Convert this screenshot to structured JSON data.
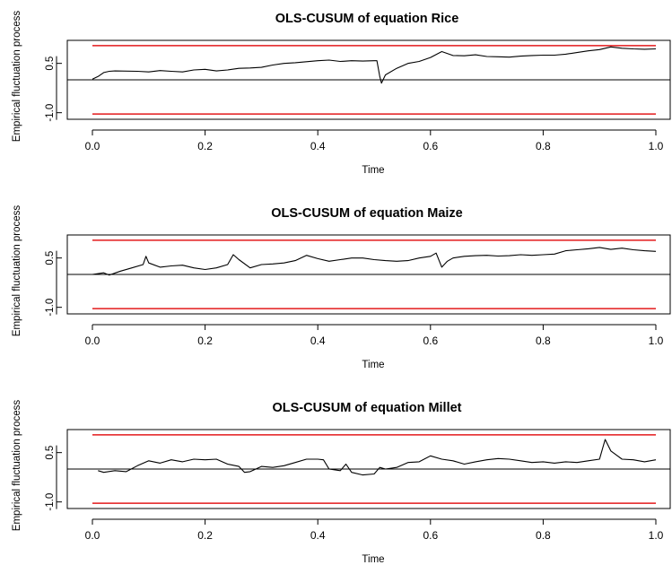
{
  "chart_data": [
    {
      "type": "line",
      "title": "OLS-CUSUM of equation Rice",
      "xlabel": "Time",
      "ylabel": "Empirical fluctuation process",
      "xlim": [
        0,
        1
      ],
      "ylim": [
        -1.2,
        1.2
      ],
      "xticks": [
        "0.0",
        "0.2",
        "0.4",
        "0.6",
        "0.8",
        "1.0"
      ],
      "yticks": [
        "-1.0",
        "0.5"
      ],
      "boundary": 1.04,
      "boundary_color": "#e31a1c",
      "series_color": "#000000",
      "zero_line": true,
      "points": [
        [
          0,
          0.02
        ],
        [
          0.01,
          0.1
        ],
        [
          0.02,
          0.22
        ],
        [
          0.03,
          0.26
        ],
        [
          0.04,
          0.27
        ],
        [
          0.08,
          0.26
        ],
        [
          0.1,
          0.24
        ],
        [
          0.12,
          0.28
        ],
        [
          0.14,
          0.26
        ],
        [
          0.16,
          0.24
        ],
        [
          0.18,
          0.3
        ],
        [
          0.2,
          0.32
        ],
        [
          0.22,
          0.27
        ],
        [
          0.24,
          0.3
        ],
        [
          0.26,
          0.35
        ],
        [
          0.28,
          0.36
        ],
        [
          0.3,
          0.38
        ],
        [
          0.32,
          0.45
        ],
        [
          0.34,
          0.5
        ],
        [
          0.36,
          0.52
        ],
        [
          0.38,
          0.55
        ],
        [
          0.4,
          0.58
        ],
        [
          0.42,
          0.6
        ],
        [
          0.44,
          0.56
        ],
        [
          0.46,
          0.58
        ],
        [
          0.48,
          0.57
        ],
        [
          0.5,
          0.58
        ],
        [
          0.505,
          0.58
        ],
        [
          0.51,
          0.1
        ],
        [
          0.513,
          -0.1
        ],
        [
          0.52,
          0.15
        ],
        [
          0.54,
          0.35
        ],
        [
          0.56,
          0.5
        ],
        [
          0.58,
          0.56
        ],
        [
          0.6,
          0.68
        ],
        [
          0.62,
          0.86
        ],
        [
          0.64,
          0.74
        ],
        [
          0.66,
          0.73
        ],
        [
          0.68,
          0.76
        ],
        [
          0.7,
          0.71
        ],
        [
          0.72,
          0.7
        ],
        [
          0.74,
          0.69
        ],
        [
          0.76,
          0.72
        ],
        [
          0.78,
          0.74
        ],
        [
          0.8,
          0.75
        ],
        [
          0.82,
          0.75
        ],
        [
          0.84,
          0.78
        ],
        [
          0.86,
          0.83
        ],
        [
          0.88,
          0.88
        ],
        [
          0.9,
          0.92
        ],
        [
          0.92,
          1.0
        ],
        [
          0.94,
          0.96
        ],
        [
          0.96,
          0.94
        ],
        [
          0.98,
          0.93
        ],
        [
          1.0,
          0.94
        ]
      ]
    },
    {
      "type": "line",
      "title": "OLS-CUSUM of equation Maize",
      "xlabel": "Time",
      "ylabel": "Empirical fluctuation process",
      "xlim": [
        0,
        1
      ],
      "ylim": [
        -1.2,
        1.2
      ],
      "xticks": [
        "0.0",
        "0.2",
        "0.4",
        "0.6",
        "0.8",
        "1.0"
      ],
      "yticks": [
        "-1.0",
        "0.5"
      ],
      "boundary": 1.04,
      "boundary_color": "#e31a1c",
      "series_color": "#000000",
      "zero_line": true,
      "points": [
        [
          0,
          0.0
        ],
        [
          0.02,
          0.05
        ],
        [
          0.03,
          -0.02
        ],
        [
          0.05,
          0.1
        ],
        [
          0.07,
          0.2
        ],
        [
          0.09,
          0.3
        ],
        [
          0.095,
          0.55
        ],
        [
          0.1,
          0.35
        ],
        [
          0.12,
          0.22
        ],
        [
          0.14,
          0.26
        ],
        [
          0.16,
          0.28
        ],
        [
          0.18,
          0.2
        ],
        [
          0.2,
          0.15
        ],
        [
          0.22,
          0.2
        ],
        [
          0.24,
          0.3
        ],
        [
          0.25,
          0.6
        ],
        [
          0.26,
          0.45
        ],
        [
          0.28,
          0.2
        ],
        [
          0.3,
          0.3
        ],
        [
          0.32,
          0.32
        ],
        [
          0.34,
          0.35
        ],
        [
          0.36,
          0.42
        ],
        [
          0.38,
          0.58
        ],
        [
          0.4,
          0.48
        ],
        [
          0.42,
          0.4
        ],
        [
          0.44,
          0.45
        ],
        [
          0.46,
          0.5
        ],
        [
          0.48,
          0.5
        ],
        [
          0.5,
          0.45
        ],
        [
          0.52,
          0.42
        ],
        [
          0.54,
          0.4
        ],
        [
          0.56,
          0.42
        ],
        [
          0.58,
          0.5
        ],
        [
          0.6,
          0.55
        ],
        [
          0.61,
          0.65
        ],
        [
          0.62,
          0.22
        ],
        [
          0.63,
          0.4
        ],
        [
          0.64,
          0.5
        ],
        [
          0.66,
          0.55
        ],
        [
          0.68,
          0.57
        ],
        [
          0.7,
          0.58
        ],
        [
          0.72,
          0.56
        ],
        [
          0.74,
          0.57
        ],
        [
          0.76,
          0.6
        ],
        [
          0.78,
          0.58
        ],
        [
          0.8,
          0.6
        ],
        [
          0.82,
          0.62
        ],
        [
          0.84,
          0.72
        ],
        [
          0.86,
          0.75
        ],
        [
          0.88,
          0.78
        ],
        [
          0.9,
          0.82
        ],
        [
          0.92,
          0.76
        ],
        [
          0.94,
          0.8
        ],
        [
          0.96,
          0.75
        ],
        [
          0.98,
          0.72
        ],
        [
          1.0,
          0.7
        ]
      ]
    },
    {
      "type": "line",
      "title": "OLS-CUSUM of equation Millet",
      "xlabel": "Time",
      "ylabel": "Empirical fluctuation process",
      "xlim": [
        0,
        1
      ],
      "ylim": [
        -1.2,
        1.2
      ],
      "xticks": [
        "0.0",
        "0.2",
        "0.4",
        "0.6",
        "0.8",
        "1.0"
      ],
      "yticks": [
        "-1.0",
        "0.5"
      ],
      "boundary": 1.04,
      "boundary_color": "#e31a1c",
      "series_color": "#000000",
      "zero_line": true,
      "points": [
        [
          0.01,
          -0.05
        ],
        [
          0.02,
          -0.1
        ],
        [
          0.04,
          -0.05
        ],
        [
          0.06,
          -0.08
        ],
        [
          0.08,
          0.1
        ],
        [
          0.1,
          0.25
        ],
        [
          0.12,
          0.18
        ],
        [
          0.14,
          0.28
        ],
        [
          0.16,
          0.22
        ],
        [
          0.18,
          0.3
        ],
        [
          0.2,
          0.28
        ],
        [
          0.22,
          0.3
        ],
        [
          0.24,
          0.15
        ],
        [
          0.26,
          0.08
        ],
        [
          0.27,
          -0.1
        ],
        [
          0.28,
          -0.08
        ],
        [
          0.3,
          0.08
        ],
        [
          0.32,
          0.05
        ],
        [
          0.34,
          0.1
        ],
        [
          0.36,
          0.2
        ],
        [
          0.38,
          0.3
        ],
        [
          0.4,
          0.3
        ],
        [
          0.41,
          0.28
        ],
        [
          0.42,
          0.0
        ],
        [
          0.44,
          -0.05
        ],
        [
          0.45,
          0.15
        ],
        [
          0.46,
          -0.1
        ],
        [
          0.48,
          -0.18
        ],
        [
          0.5,
          -0.15
        ],
        [
          0.51,
          0.05
        ],
        [
          0.52,
          0.0
        ],
        [
          0.54,
          0.05
        ],
        [
          0.56,
          0.2
        ],
        [
          0.58,
          0.22
        ],
        [
          0.6,
          0.4
        ],
        [
          0.62,
          0.3
        ],
        [
          0.64,
          0.25
        ],
        [
          0.66,
          0.15
        ],
        [
          0.68,
          0.22
        ],
        [
          0.7,
          0.28
        ],
        [
          0.72,
          0.32
        ],
        [
          0.74,
          0.3
        ],
        [
          0.76,
          0.25
        ],
        [
          0.78,
          0.2
        ],
        [
          0.8,
          0.22
        ],
        [
          0.82,
          0.18
        ],
        [
          0.84,
          0.22
        ],
        [
          0.86,
          0.2
        ],
        [
          0.88,
          0.25
        ],
        [
          0.9,
          0.3
        ],
        [
          0.91,
          0.9
        ],
        [
          0.92,
          0.55
        ],
        [
          0.94,
          0.3
        ],
        [
          0.96,
          0.28
        ],
        [
          0.98,
          0.22
        ],
        [
          1.0,
          0.28
        ]
      ]
    }
  ]
}
